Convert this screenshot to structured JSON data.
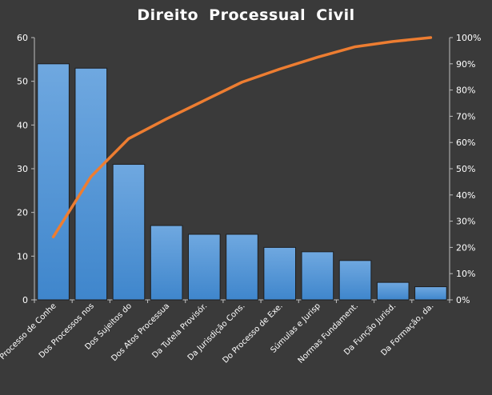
{
  "chart_data": {
    "type": "bar",
    "title": "Direito  Processual  Civil",
    "categories": [
      "Do Processo de Conhe",
      "Dos Processos nos",
      "Dos Sujeitos do",
      "Dos Atos Processua",
      "Da Tutela Provisór.",
      "Da Jurisdição Cons.",
      "Do Processo de Exe.",
      "Súmulas e Jurisp",
      "Normas Fundament.",
      "Da Função Jurisd.",
      "Da Formação, da."
    ],
    "series": [
      {
        "type": "bar",
        "axis": "left",
        "values": [
          54,
          53,
          31,
          17,
          15,
          15,
          12,
          11,
          9,
          4,
          3
        ]
      },
      {
        "type": "line",
        "axis": "right",
        "values": [
          24,
          47,
          61.5,
          69,
          76,
          83,
          88,
          92.5,
          96.5,
          98.5,
          100
        ]
      }
    ],
    "y_left": {
      "min": 0,
      "max": 60,
      "ticks": [
        "0",
        "10",
        "20",
        "30",
        "40",
        "50",
        "60"
      ]
    },
    "y_right": {
      "min": 0,
      "max": 100,
      "ticks": [
        "0%",
        "10%",
        "20%",
        "30%",
        "40%",
        "50%",
        "60%",
        "70%",
        "80%",
        "90%",
        "100%"
      ]
    },
    "grid": false,
    "legend": "none",
    "colors": {
      "background": "#3a3a3a",
      "bar": "#5b9bd5",
      "bar_border": "#1f1f1f",
      "line": "#ed7d31",
      "axis": "#bfbfbf",
      "text": "#ffffff"
    }
  }
}
